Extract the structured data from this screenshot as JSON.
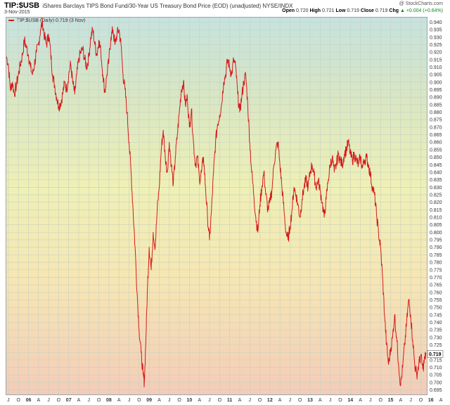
{
  "header": {
    "symbol": "TIP:$USB",
    "description": "iShares Barclays TIPS Bond Fund/30-Year US Treasury Bond Price (EOD) (unadjusted)  NYSE/INDX",
    "date": "3-Nov-2015",
    "credit": "@ StockCharts.com",
    "open_label": "Open",
    "open_value": "0.720",
    "high_label": "High",
    "high_value": "0.721",
    "low_label": "Low",
    "low_value": "0.719",
    "close_label": "Close",
    "close_value": "0.719",
    "chg_label": "Chg",
    "chg_value": "+0.004 (+0.64%)",
    "chg_marker": "▲"
  },
  "legend": {
    "label": "TIP:$USB (Daily) 0.719 (3 Nov)"
  },
  "colors": {
    "line": "#d61a1a",
    "grid": "#c9cfc4",
    "last_box": "#ffffff"
  },
  "chart_data": {
    "type": "line",
    "title": "TIP:$USB",
    "ylim": [
      0.692,
      0.943
    ],
    "y_ticks": [
      0.695,
      0.7,
      0.705,
      0.71,
      0.715,
      0.72,
      0.725,
      0.73,
      0.735,
      0.74,
      0.745,
      0.75,
      0.755,
      0.76,
      0.765,
      0.77,
      0.775,
      0.78,
      0.785,
      0.79,
      0.795,
      0.8,
      0.805,
      0.81,
      0.815,
      0.82,
      0.825,
      0.83,
      0.835,
      0.84,
      0.845,
      0.85,
      0.855,
      0.86,
      0.865,
      0.87,
      0.875,
      0.88,
      0.885,
      0.89,
      0.895,
      0.9,
      0.905,
      0.91,
      0.915,
      0.92,
      0.925,
      0.93,
      0.935,
      0.94
    ],
    "y_tick_labels": [
      "0.695",
      "0.700",
      "0.705",
      "0.710",
      "0.715",
      "0.720",
      "0.725",
      "0.730",
      "0.735",
      "0.740",
      "0.745",
      "0.750",
      "0.755",
      "0.760",
      "0.765",
      "0.770",
      "0.775",
      "0.780",
      "0.785",
      "0.790",
      "0.795",
      "0.800",
      "0.805",
      "0.810",
      "0.815",
      "0.820",
      "0.825",
      "0.830",
      "0.835",
      "0.840",
      "0.845",
      "0.850",
      "0.855",
      "0.860",
      "0.865",
      "0.870",
      "0.875",
      "0.880",
      "0.885",
      "0.890",
      "0.895",
      "0.900",
      "0.905",
      "0.910",
      "0.915",
      "0.920",
      "0.925",
      "0.930",
      "0.935",
      "0.940"
    ],
    "last_value": "0.719",
    "x_range": [
      2005.45,
      2015.9
    ],
    "x_ticks": [
      {
        "t": 2005.5,
        "label": "J"
      },
      {
        "t": 2005.75,
        "label": "O"
      },
      {
        "t": 2006.0,
        "label": "06"
      },
      {
        "t": 2006.25,
        "label": "A"
      },
      {
        "t": 2006.5,
        "label": "J"
      },
      {
        "t": 2006.75,
        "label": "O"
      },
      {
        "t": 2007.0,
        "label": "07"
      },
      {
        "t": 2007.25,
        "label": "A"
      },
      {
        "t": 2007.5,
        "label": "J"
      },
      {
        "t": 2007.75,
        "label": "O"
      },
      {
        "t": 2008.0,
        "label": "08"
      },
      {
        "t": 2008.25,
        "label": "A"
      },
      {
        "t": 2008.5,
        "label": "J"
      },
      {
        "t": 2008.75,
        "label": "O"
      },
      {
        "t": 2009.0,
        "label": "09"
      },
      {
        "t": 2009.25,
        "label": "A"
      },
      {
        "t": 2009.5,
        "label": "J"
      },
      {
        "t": 2009.75,
        "label": "O"
      },
      {
        "t": 2010.0,
        "label": "10"
      },
      {
        "t": 2010.25,
        "label": "A"
      },
      {
        "t": 2010.5,
        "label": "J"
      },
      {
        "t": 2010.75,
        "label": "O"
      },
      {
        "t": 2011.0,
        "label": "11"
      },
      {
        "t": 2011.25,
        "label": "A"
      },
      {
        "t": 2011.5,
        "label": "J"
      },
      {
        "t": 2011.75,
        "label": "O"
      },
      {
        "t": 2012.0,
        "label": "12"
      },
      {
        "t": 2012.25,
        "label": "A"
      },
      {
        "t": 2012.5,
        "label": "J"
      },
      {
        "t": 2012.75,
        "label": "O"
      },
      {
        "t": 2013.0,
        "label": "13"
      },
      {
        "t": 2013.25,
        "label": "A"
      },
      {
        "t": 2013.5,
        "label": "J"
      },
      {
        "t": 2013.75,
        "label": "O"
      },
      {
        "t": 2014.0,
        "label": "14"
      },
      {
        "t": 2014.25,
        "label": "A"
      },
      {
        "t": 2014.5,
        "label": "J"
      },
      {
        "t": 2014.75,
        "label": "O"
      },
      {
        "t": 2015.0,
        "label": "15"
      },
      {
        "t": 2015.25,
        "label": "A"
      },
      {
        "t": 2015.5,
        "label": "J"
      },
      {
        "t": 2015.75,
        "label": "O"
      },
      {
        "t": 2016.0,
        "label": "16"
      },
      {
        "t": 2016.25,
        "label": "A"
      }
    ],
    "series": [
      {
        "points": [
          [
            2005.45,
            0.917
          ],
          [
            2005.5,
            0.912
          ],
          [
            2005.55,
            0.895
          ],
          [
            2005.6,
            0.9
          ],
          [
            2005.65,
            0.892
          ],
          [
            2005.7,
            0.898
          ],
          [
            2005.75,
            0.905
          ],
          [
            2005.8,
            0.912
          ],
          [
            2005.85,
            0.918
          ],
          [
            2005.9,
            0.928
          ],
          [
            2005.95,
            0.923
          ],
          [
            2006.0,
            0.918
          ],
          [
            2006.05,
            0.91
          ],
          [
            2006.1,
            0.905
          ],
          [
            2006.15,
            0.912
          ],
          [
            2006.2,
            0.92
          ],
          [
            2006.25,
            0.925
          ],
          [
            2006.3,
            0.935
          ],
          [
            2006.35,
            0.94
          ],
          [
            2006.4,
            0.93
          ],
          [
            2006.45,
            0.925
          ],
          [
            2006.5,
            0.932
          ],
          [
            2006.55,
            0.92
          ],
          [
            2006.6,
            0.905
          ],
          [
            2006.65,
            0.898
          ],
          [
            2006.7,
            0.89
          ],
          [
            2006.75,
            0.884
          ],
          [
            2006.8,
            0.886
          ],
          [
            2006.85,
            0.892
          ],
          [
            2006.9,
            0.9
          ],
          [
            2006.95,
            0.895
          ],
          [
            2007.0,
            0.905
          ],
          [
            2007.05,
            0.912
          ],
          [
            2007.1,
            0.9
          ],
          [
            2007.15,
            0.892
          ],
          [
            2007.2,
            0.905
          ],
          [
            2007.25,
            0.915
          ],
          [
            2007.3,
            0.92
          ],
          [
            2007.35,
            0.922
          ],
          [
            2007.4,
            0.915
          ],
          [
            2007.45,
            0.91
          ],
          [
            2007.5,
            0.917
          ],
          [
            2007.55,
            0.93
          ],
          [
            2007.6,
            0.935
          ],
          [
            2007.65,
            0.925
          ],
          [
            2007.7,
            0.918
          ],
          [
            2007.75,
            0.928
          ],
          [
            2007.8,
            0.92
          ],
          [
            2007.85,
            0.905
          ],
          [
            2007.9,
            0.893
          ],
          [
            2007.95,
            0.905
          ],
          [
            2008.0,
            0.915
          ],
          [
            2008.05,
            0.93
          ],
          [
            2008.1,
            0.935
          ],
          [
            2008.15,
            0.925
          ],
          [
            2008.2,
            0.932
          ],
          [
            2008.25,
            0.935
          ],
          [
            2008.3,
            0.925
          ],
          [
            2008.35,
            0.905
          ],
          [
            2008.4,
            0.895
          ],
          [
            2008.45,
            0.88
          ],
          [
            2008.5,
            0.86
          ],
          [
            2008.55,
            0.84
          ],
          [
            2008.6,
            0.815
          ],
          [
            2008.65,
            0.79
          ],
          [
            2008.7,
            0.76
          ],
          [
            2008.75,
            0.735
          ],
          [
            2008.8,
            0.72
          ],
          [
            2008.85,
            0.705
          ],
          [
            2008.88,
            0.7
          ],
          [
            2008.92,
            0.73
          ],
          [
            2008.96,
            0.765
          ],
          [
            2009.0,
            0.79
          ],
          [
            2009.05,
            0.775
          ],
          [
            2009.1,
            0.8
          ],
          [
            2009.15,
            0.79
          ],
          [
            2009.2,
            0.815
          ],
          [
            2009.25,
            0.83
          ],
          [
            2009.3,
            0.855
          ],
          [
            2009.35,
            0.868
          ],
          [
            2009.4,
            0.85
          ],
          [
            2009.45,
            0.84
          ],
          [
            2009.5,
            0.86
          ],
          [
            2009.55,
            0.845
          ],
          [
            2009.6,
            0.832
          ],
          [
            2009.65,
            0.85
          ],
          [
            2009.7,
            0.865
          ],
          [
            2009.75,
            0.88
          ],
          [
            2009.8,
            0.895
          ],
          [
            2009.85,
            0.9
          ],
          [
            2009.9,
            0.885
          ],
          [
            2009.95,
            0.89
          ],
          [
            2010.0,
            0.87
          ],
          [
            2010.05,
            0.882
          ],
          [
            2010.1,
            0.86
          ],
          [
            2010.15,
            0.845
          ],
          [
            2010.2,
            0.85
          ],
          [
            2010.25,
            0.835
          ],
          [
            2010.3,
            0.84
          ],
          [
            2010.35,
            0.85
          ],
          [
            2010.4,
            0.83
          ],
          [
            2010.45,
            0.81
          ],
          [
            2010.5,
            0.795
          ],
          [
            2010.55,
            0.815
          ],
          [
            2010.6,
            0.84
          ],
          [
            2010.65,
            0.86
          ],
          [
            2010.7,
            0.872
          ],
          [
            2010.75,
            0.878
          ],
          [
            2010.8,
            0.885
          ],
          [
            2010.85,
            0.9
          ],
          [
            2010.9,
            0.905
          ],
          [
            2010.95,
            0.915
          ],
          [
            2011.0,
            0.91
          ],
          [
            2011.05,
            0.905
          ],
          [
            2011.1,
            0.915
          ],
          [
            2011.15,
            0.91
          ],
          [
            2011.2,
            0.892
          ],
          [
            2011.25,
            0.88
          ],
          [
            2011.3,
            0.89
          ],
          [
            2011.35,
            0.9
          ],
          [
            2011.4,
            0.905
          ],
          [
            2011.45,
            0.885
          ],
          [
            2011.5,
            0.86
          ],
          [
            2011.55,
            0.84
          ],
          [
            2011.6,
            0.825
          ],
          [
            2011.65,
            0.81
          ],
          [
            2011.7,
            0.8
          ],
          [
            2011.75,
            0.818
          ],
          [
            2011.8,
            0.83
          ],
          [
            2011.85,
            0.84
          ],
          [
            2011.9,
            0.825
          ],
          [
            2011.95,
            0.815
          ],
          [
            2012.0,
            0.82
          ],
          [
            2012.05,
            0.828
          ],
          [
            2012.1,
            0.845
          ],
          [
            2012.15,
            0.855
          ],
          [
            2012.2,
            0.86
          ],
          [
            2012.25,
            0.845
          ],
          [
            2012.3,
            0.83
          ],
          [
            2012.35,
            0.815
          ],
          [
            2012.4,
            0.8
          ],
          [
            2012.45,
            0.795
          ],
          [
            2012.5,
            0.803
          ],
          [
            2012.55,
            0.815
          ],
          [
            2012.6,
            0.83
          ],
          [
            2012.65,
            0.825
          ],
          [
            2012.7,
            0.818
          ],
          [
            2012.75,
            0.81
          ],
          [
            2012.8,
            0.822
          ],
          [
            2012.85,
            0.83
          ],
          [
            2012.9,
            0.835
          ],
          [
            2012.95,
            0.83
          ],
          [
            2013.0,
            0.84
          ],
          [
            2013.05,
            0.845
          ],
          [
            2013.1,
            0.838
          ],
          [
            2013.15,
            0.83
          ],
          [
            2013.2,
            0.835
          ],
          [
            2013.25,
            0.828
          ],
          [
            2013.3,
            0.82
          ],
          [
            2013.35,
            0.81
          ],
          [
            2013.4,
            0.822
          ],
          [
            2013.45,
            0.835
          ],
          [
            2013.5,
            0.845
          ],
          [
            2013.55,
            0.85
          ],
          [
            2013.6,
            0.84
          ],
          [
            2013.65,
            0.845
          ],
          [
            2013.7,
            0.852
          ],
          [
            2013.75,
            0.848
          ],
          [
            2013.8,
            0.845
          ],
          [
            2013.85,
            0.852
          ],
          [
            2013.9,
            0.855
          ],
          [
            2013.95,
            0.86
          ],
          [
            2014.0,
            0.852
          ],
          [
            2014.05,
            0.848
          ],
          [
            2014.1,
            0.852
          ],
          [
            2014.15,
            0.848
          ],
          [
            2014.2,
            0.845
          ],
          [
            2014.25,
            0.85
          ],
          [
            2014.3,
            0.843
          ],
          [
            2014.35,
            0.848
          ],
          [
            2014.4,
            0.85
          ],
          [
            2014.45,
            0.845
          ],
          [
            2014.5,
            0.838
          ],
          [
            2014.55,
            0.83
          ],
          [
            2014.6,
            0.825
          ],
          [
            2014.65,
            0.812
          ],
          [
            2014.7,
            0.8
          ],
          [
            2014.75,
            0.79
          ],
          [
            2014.8,
            0.77
          ],
          [
            2014.85,
            0.745
          ],
          [
            2014.9,
            0.725
          ],
          [
            2014.95,
            0.712
          ],
          [
            2015.0,
            0.722
          ],
          [
            2015.05,
            0.73
          ],
          [
            2015.1,
            0.745
          ],
          [
            2015.15,
            0.73
          ],
          [
            2015.2,
            0.712
          ],
          [
            2015.25,
            0.698
          ],
          [
            2015.3,
            0.71
          ],
          [
            2015.35,
            0.725
          ],
          [
            2015.4,
            0.74
          ],
          [
            2015.45,
            0.755
          ],
          [
            2015.5,
            0.745
          ],
          [
            2015.55,
            0.728
          ],
          [
            2015.6,
            0.712
          ],
          [
            2015.65,
            0.705
          ],
          [
            2015.7,
            0.712
          ],
          [
            2015.75,
            0.718
          ],
          [
            2015.8,
            0.709
          ],
          [
            2015.85,
            0.716
          ],
          [
            2015.88,
            0.719
          ]
        ]
      }
    ],
    "grid": true,
    "legend_position": "top-left"
  }
}
